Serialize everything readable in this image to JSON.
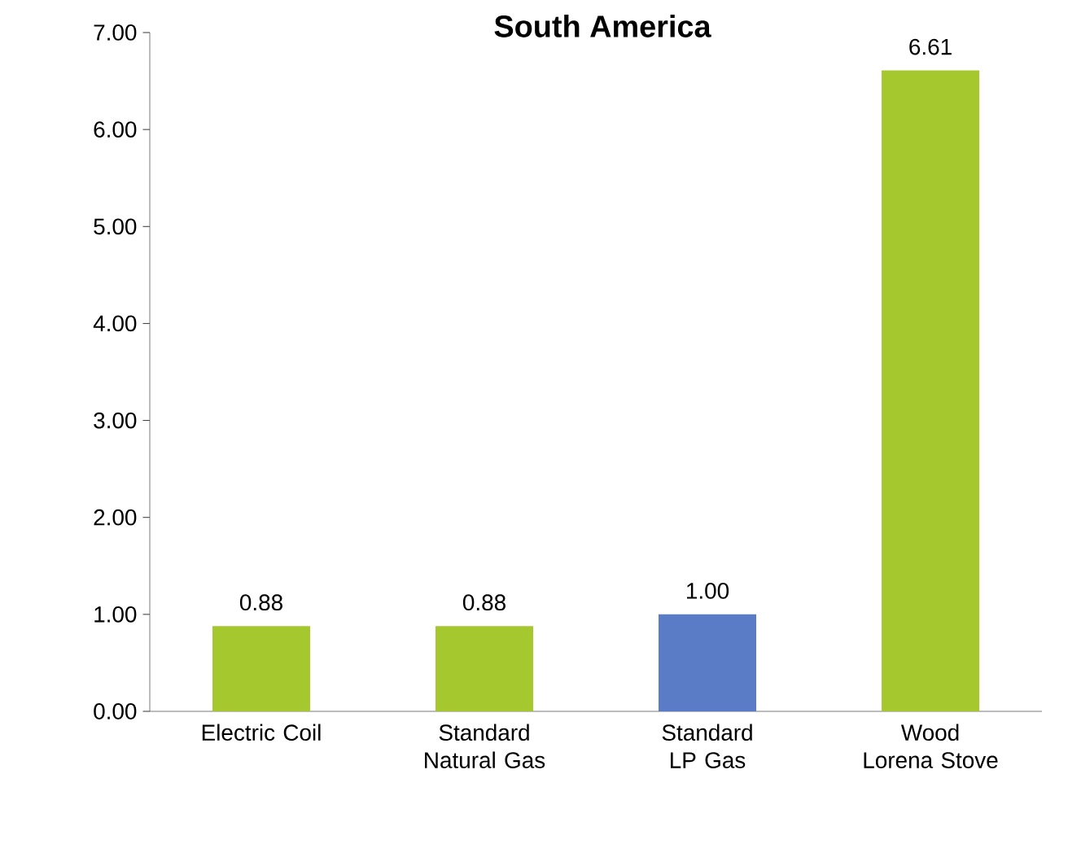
{
  "chart_data": {
    "type": "bar",
    "title": "South America",
    "categories": [
      "Electric Coil",
      "Standard Natural Gas",
      "Standard LP Gas",
      "Wood Lorena Stove"
    ],
    "values": [
      0.88,
      0.88,
      1.0,
      6.61
    ],
    "colors": [
      "#a5c82e",
      "#a5c82e",
      "#5a7cc6",
      "#a5c82e"
    ],
    "value_labels": [
      "0.88",
      "0.88",
      "1.00",
      "6.61"
    ],
    "ylim": [
      0,
      7
    ],
    "yticks": [
      {
        "value": 0,
        "label": "0.00"
      },
      {
        "value": 1,
        "label": "1.00"
      },
      {
        "value": 2,
        "label": "2.00"
      },
      {
        "value": 3,
        "label": "3.00"
      },
      {
        "value": 4,
        "label": "4.00"
      },
      {
        "value": 5,
        "label": "5.00"
      },
      {
        "value": 6,
        "label": "6.00"
      },
      {
        "value": 7,
        "label": "7.00"
      }
    ],
    "grid": false
  }
}
